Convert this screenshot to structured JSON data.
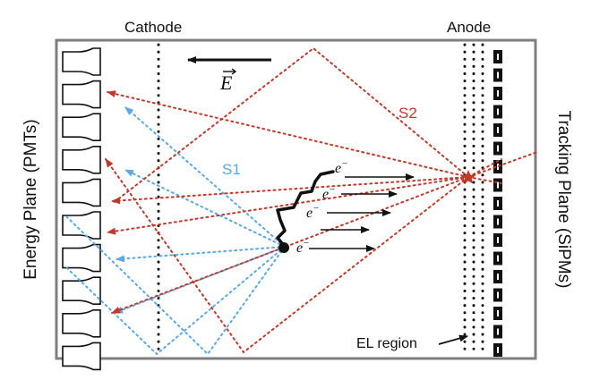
{
  "labels": {
    "cathode": "Cathode",
    "anode": "Anode",
    "efield": "E",
    "s1": "S1",
    "s2": "S2",
    "electron": "e",
    "electron_sup": "−",
    "el_region": "EL region",
    "energy_plane": "Energy Plane (PMTs)",
    "tracking_plane": "Tracking Plane (SiPMs)"
  },
  "colors": {
    "s1": "#5aa8e6",
    "s2": "#c0392b",
    "frame": "#7f7f7f",
    "ink": "#111111"
  },
  "icons": {
    "pmt": "pmt-icon",
    "sipm": "sipm-icon",
    "star": "s2-emission-star-icon"
  }
}
